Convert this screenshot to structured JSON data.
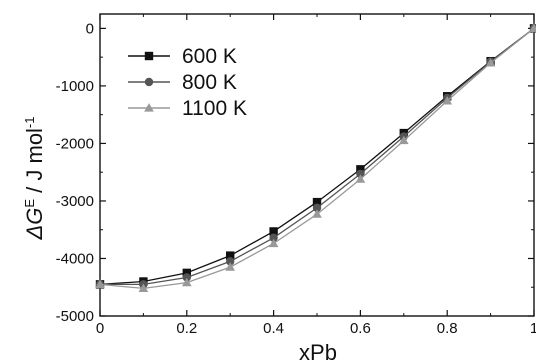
{
  "chart_data": {
    "type": "line",
    "title": "",
    "xlabel": "xPb",
    "ylabel": {
      "prefix": "ΔG",
      "superscript": "E",
      "unit": " / J mol",
      "unit_superscript": "-1"
    },
    "xlim": [
      0,
      1.0
    ],
    "ylim": [
      -5000,
      250
    ],
    "xticks": [
      0,
      0.2,
      0.4,
      0.6,
      0.8,
      1.0
    ],
    "xtick_labels": [
      "0",
      "0.2",
      "0.4",
      "0.6",
      "0.8",
      "1"
    ],
    "yticks": [
      -5000,
      -4000,
      -3000,
      -2000,
      -1000,
      0
    ],
    "ytick_labels": [
      "-5000",
      "-4000",
      "-3000",
      "-2000",
      "-1000",
      "0"
    ],
    "legend_position": "top-left",
    "grid": false,
    "series": [
      {
        "name": "600 K",
        "marker": "square",
        "color": "#111111",
        "x": [
          0,
          0.1,
          0.2,
          0.3,
          0.4,
          0.5,
          0.6,
          0.7,
          0.8,
          0.9,
          1.0
        ],
        "y": [
          -4450,
          -4400,
          -4250,
          -3950,
          -3530,
          -3020,
          -2450,
          -1820,
          -1180,
          -570,
          0
        ]
      },
      {
        "name": "800 K",
        "marker": "circle",
        "color": "#555555",
        "x": [
          0,
          0.1,
          0.2,
          0.3,
          0.4,
          0.5,
          0.6,
          0.7,
          0.8,
          0.9,
          1.0
        ],
        "y": [
          -4450,
          -4450,
          -4330,
          -4050,
          -3640,
          -3120,
          -2530,
          -1880,
          -1210,
          -580,
          0
        ]
      },
      {
        "name": "1100 K",
        "marker": "triangle",
        "color": "#999999",
        "x": [
          0,
          0.1,
          0.2,
          0.3,
          0.4,
          0.5,
          0.6,
          0.7,
          0.8,
          0.9,
          1.0
        ],
        "y": [
          -4450,
          -4520,
          -4420,
          -4150,
          -3740,
          -3230,
          -2620,
          -1950,
          -1260,
          -600,
          0
        ]
      }
    ]
  }
}
